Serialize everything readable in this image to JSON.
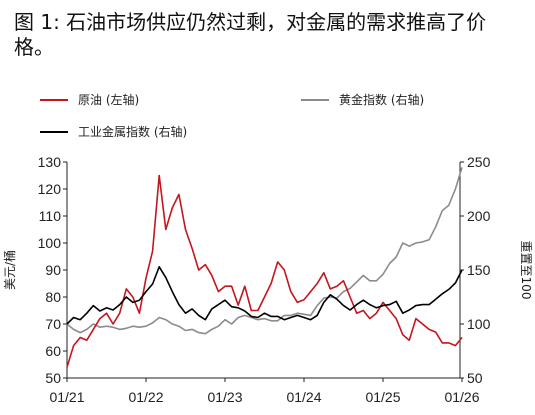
{
  "title": "图 1:  石油市场供应仍然过剩，对金属的需求推高了价格。",
  "chart_data": {
    "type": "line",
    "x_ticks": [
      "01/21",
      "01/22",
      "01/23",
      "01/24",
      "01/25",
      "01/26"
    ],
    "y_left": {
      "label": "美元/桶",
      "lim": [
        50,
        130
      ],
      "ticks": [
        50,
        60,
        70,
        80,
        90,
        100,
        110,
        120,
        130
      ]
    },
    "y_right": {
      "label": "重置至100",
      "lim": [
        50,
        250
      ],
      "ticks": [
        50,
        100,
        150,
        200,
        250
      ]
    },
    "legend": {
      "placement": "top"
    },
    "series": [
      {
        "name": "原油 (左轴)",
        "axis": "left",
        "color": "#c4161c",
        "x": [
          "2021-01",
          "2021-02",
          "2021-03",
          "2021-04",
          "2021-05",
          "2021-06",
          "2021-07",
          "2021-08",
          "2021-09",
          "2021-10",
          "2021-11",
          "2021-12",
          "2022-01",
          "2022-02",
          "2022-03",
          "2022-04",
          "2022-05",
          "2022-06",
          "2022-07",
          "2022-08",
          "2022-09",
          "2022-10",
          "2022-11",
          "2022-12",
          "2023-01",
          "2023-02",
          "2023-03",
          "2023-04",
          "2023-05",
          "2023-06",
          "2023-07",
          "2023-08",
          "2023-09",
          "2023-10",
          "2023-11",
          "2023-12",
          "2024-01",
          "2024-02",
          "2024-03",
          "2024-04",
          "2024-05",
          "2024-06",
          "2024-07",
          "2024-08",
          "2024-09",
          "2024-10",
          "2024-11",
          "2024-12",
          "2025-01",
          "2025-02",
          "2025-03",
          "2025-04",
          "2025-05",
          "2025-06",
          "2025-07",
          "2025-08",
          "2025-09",
          "2025-10",
          "2025-11",
          "2025-12",
          "2026-01"
        ],
        "y": [
          54,
          62,
          65,
          64,
          68,
          72,
          74,
          70,
          74,
          83,
          80,
          74,
          87,
          97,
          125,
          105,
          113,
          118,
          105,
          98,
          90,
          92,
          88,
          82,
          84,
          84,
          77,
          84,
          75,
          75,
          80,
          85,
          93,
          90,
          82,
          78,
          79,
          82,
          85,
          89,
          83,
          84,
          86,
          80,
          74,
          75,
          72,
          74,
          78,
          75,
          72,
          66,
          64,
          72,
          70,
          68,
          67,
          63,
          63,
          62,
          65
        ]
      },
      {
        "name": "黄金指数 (右轴)",
        "axis": "right",
        "color": "#8c8c8c",
        "x": [
          "2021-01",
          "2021-02",
          "2021-03",
          "2021-04",
          "2021-05",
          "2021-06",
          "2021-07",
          "2021-08",
          "2021-09",
          "2021-10",
          "2021-11",
          "2021-12",
          "2022-01",
          "2022-02",
          "2022-03",
          "2022-04",
          "2022-05",
          "2022-06",
          "2022-07",
          "2022-08",
          "2022-09",
          "2022-10",
          "2022-11",
          "2022-12",
          "2023-01",
          "2023-02",
          "2023-03",
          "2023-04",
          "2023-05",
          "2023-06",
          "2023-07",
          "2023-08",
          "2023-09",
          "2023-10",
          "2023-11",
          "2023-12",
          "2024-01",
          "2024-02",
          "2024-03",
          "2024-04",
          "2024-05",
          "2024-06",
          "2024-07",
          "2024-08",
          "2024-09",
          "2024-10",
          "2024-11",
          "2024-12",
          "2025-01",
          "2025-02",
          "2025-03",
          "2025-04",
          "2025-05",
          "2025-06",
          "2025-07",
          "2025-08",
          "2025-09",
          "2025-10",
          "2025-11",
          "2025-12",
          "2026-01"
        ],
        "y": [
          100,
          95,
          92,
          95,
          100,
          97,
          98,
          97,
          95,
          96,
          98,
          97,
          98,
          101,
          106,
          104,
          100,
          98,
          94,
          95,
          92,
          91,
          95,
          98,
          104,
          100,
          106,
          108,
          106,
          104,
          105,
          103,
          103,
          108,
          108,
          110,
          109,
          108,
          117,
          124,
          125,
          124,
          130,
          133,
          139,
          145,
          140,
          140,
          146,
          156,
          162,
          175,
          172,
          175,
          176,
          178,
          190,
          205,
          210,
          225,
          245
        ]
      },
      {
        "name": "工业金属指数 (右轴)",
        "axis": "right",
        "color": "#000000",
        "x": [
          "2021-01",
          "2021-02",
          "2021-03",
          "2021-04",
          "2021-05",
          "2021-06",
          "2021-07",
          "2021-08",
          "2021-09",
          "2021-10",
          "2021-11",
          "2021-12",
          "2022-01",
          "2022-02",
          "2022-03",
          "2022-04",
          "2022-05",
          "2022-06",
          "2022-07",
          "2022-08",
          "2022-09",
          "2022-10",
          "2022-11",
          "2022-12",
          "2023-01",
          "2023-02",
          "2023-03",
          "2023-04",
          "2023-05",
          "2023-06",
          "2023-07",
          "2023-08",
          "2023-09",
          "2023-10",
          "2023-11",
          "2023-12",
          "2024-01",
          "2024-02",
          "2024-03",
          "2024-04",
          "2024-05",
          "2024-06",
          "2024-07",
          "2024-08",
          "2024-09",
          "2024-10",
          "2024-11",
          "2024-12",
          "2025-01",
          "2025-02",
          "2025-03",
          "2025-04",
          "2025-05",
          "2025-06",
          "2025-07",
          "2025-08",
          "2025-09",
          "2025-10",
          "2025-11",
          "2025-12",
          "2026-01"
        ],
        "y": [
          100,
          106,
          104,
          110,
          117,
          112,
          115,
          113,
          118,
          125,
          120,
          122,
          130,
          137,
          153,
          143,
          130,
          118,
          110,
          114,
          108,
          104,
          114,
          118,
          122,
          116,
          115,
          112,
          107,
          106,
          110,
          107,
          107,
          104,
          106,
          108,
          106,
          104,
          108,
          120,
          127,
          123,
          117,
          113,
          118,
          122,
          118,
          115,
          117,
          118,
          121,
          110,
          113,
          117,
          118,
          118,
          123,
          128,
          132,
          138,
          150
        ]
      }
    ]
  }
}
